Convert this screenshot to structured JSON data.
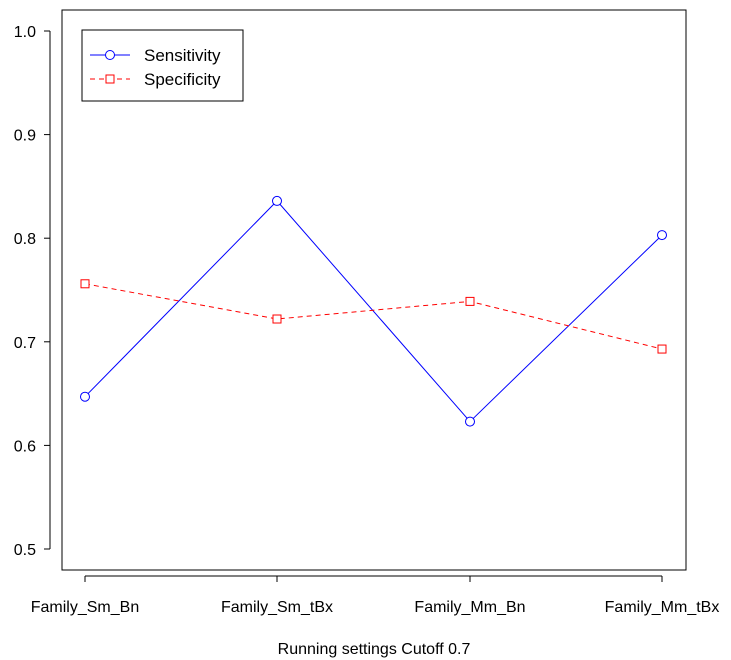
{
  "chart_data": {
    "type": "line",
    "title": "",
    "xlabel": "Running settings Cutoff 0.7",
    "ylabel": "",
    "categories": [
      "Family_Sm_Bn",
      "Family_Sm_tBx",
      "Family_Mm_Bn",
      "Family_Mm_tBx"
    ],
    "ylim": [
      0.5,
      1.0
    ],
    "yticks": [
      "0.5",
      "0.6",
      "0.7",
      "0.8",
      "0.9",
      "1.0"
    ],
    "grid": false,
    "legend_position": "top-left",
    "series": [
      {
        "name": "Sensitivity",
        "values": [
          0.647,
          0.836,
          0.623,
          0.803
        ],
        "color": "#0000ff",
        "line_style": "solid",
        "marker": "circle"
      },
      {
        "name": "Specificity",
        "values": [
          0.756,
          0.722,
          0.739,
          0.693
        ],
        "color": "#ff0000",
        "line_style": "dashed",
        "marker": "square"
      }
    ]
  }
}
